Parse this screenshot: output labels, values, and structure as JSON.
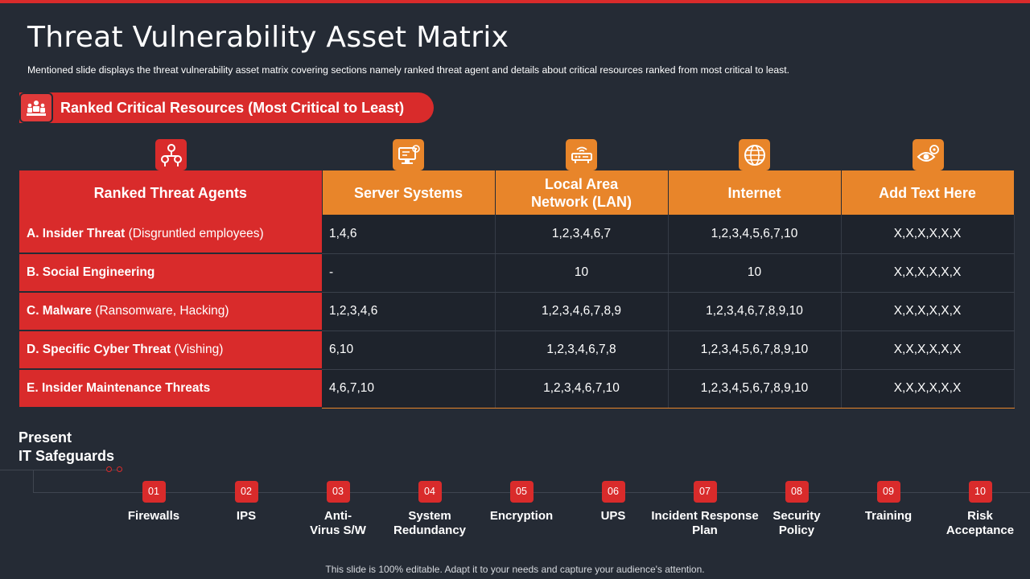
{
  "title": "Threat Vulnerability Asset Matrix",
  "subtitle": "Mentioned slide displays the threat vulnerability asset matrix covering  sections namely ranked threat agent and details about critical resources ranked from most critical to least.",
  "section_label": "Ranked Critical Resources (Most Critical to Least)",
  "table": {
    "headers": [
      "Ranked Threat Agents",
      "Server Systems",
      "Local Area Network (LAN)",
      "Internet",
      "Add Text Here"
    ],
    "header_icons": [
      "threat-network-icon",
      "server-icon",
      "router-icon",
      "globe-icon",
      "eye-gear-icon"
    ],
    "rows": [
      {
        "agent_bold": "A. Insider Threat",
        "agent_note": " (Disgruntled employees)",
        "values": [
          "1,4,6",
          "1,2,3,4,6,7",
          "1,2,3,4,5,6,7,10",
          "X,X,X,X,X,X"
        ]
      },
      {
        "agent_bold": "B. Social Engineering",
        "agent_note": "",
        "values": [
          "-",
          "10",
          "10",
          "X,X,X,X,X,X"
        ]
      },
      {
        "agent_bold": "C. Malware",
        "agent_note": " (Ransomware, Hacking)",
        "values": [
          "1,2,3,4,6",
          "1,2,3,4,6,7,8,9",
          "1,2,3,4,6,7,8,9,10",
          "X,X,X,X,X,X"
        ]
      },
      {
        "agent_bold": "D. Specific Cyber Threat",
        "agent_note": " (Vishing)",
        "values": [
          "6,10",
          "1,2,3,4,6,7,8",
          "1,2,3,4,5,6,7,8,9,10",
          "X,X,X,X,X,X"
        ]
      },
      {
        "agent_bold": "E. Insider Maintenance Threats",
        "agent_note": "",
        "values": [
          "4,6,7,10",
          "1,2,3,4,6,7,10",
          "1,2,3,4,5,6,7,8,9,10",
          "X,X,X,X,X,X"
        ]
      }
    ]
  },
  "safeguards": {
    "heading_line1": "Present",
    "heading_line2": "IT Safeguards",
    "items": [
      {
        "num": "01",
        "label": "Firewalls"
      },
      {
        "num": "02",
        "label": "IPS"
      },
      {
        "num": "03",
        "label": "Anti-Virus S/W"
      },
      {
        "num": "04",
        "label": "System Redundancy"
      },
      {
        "num": "05",
        "label": "Encryption"
      },
      {
        "num": "06",
        "label": "UPS"
      },
      {
        "num": "07",
        "label": "Incident Response Plan"
      },
      {
        "num": "08",
        "label": "Security Policy"
      },
      {
        "num": "09",
        "label": "Training"
      },
      {
        "num": "10",
        "label": "Risk Acceptance"
      }
    ]
  },
  "footer": "This slide is 100% editable. Adapt it to your needs and capture your audience's attention.",
  "colors": {
    "accent_red": "#d92b2b",
    "accent_orange": "#e8852a",
    "background": "#252b35"
  }
}
